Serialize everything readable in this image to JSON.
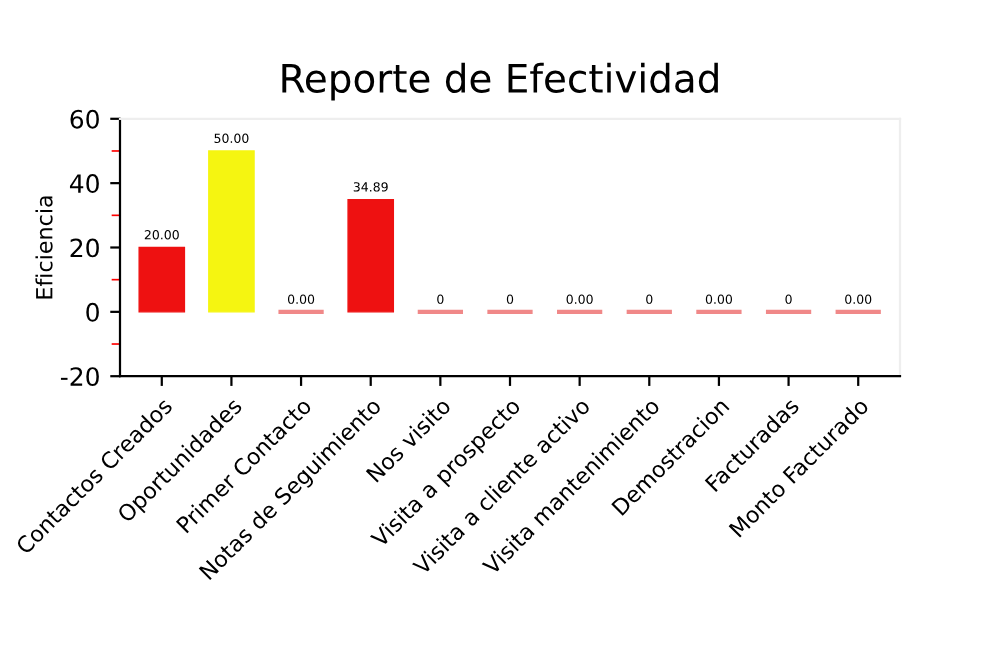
{
  "chart_data": {
    "type": "bar",
    "title": "Reporte de Efectividad",
    "ylabel": "Eficiencia",
    "categories": [
      "Contactos Creados",
      "Oportunidades",
      "Primer Contacto",
      "Notas de Seguimiento",
      "Nos visito",
      "Visita a prospecto",
      "Visita a cliente activo",
      "Visita mantenimiento",
      "Demostracion",
      "Facturadas",
      "Monto Facturado"
    ],
    "values": [
      20,
      50,
      0,
      34.89,
      0,
      0,
      0,
      0,
      0,
      0,
      0
    ],
    "value_labels": [
      "20.00",
      "50.00",
      "0.00",
      "34.89",
      "0",
      "0",
      "0.00",
      "0",
      "0.00",
      "0",
      "0.00"
    ],
    "colors": [
      "#ee1111",
      "#f5f511",
      "#f08888",
      "#ee1111",
      "#f08888",
      "#f08888",
      "#f08888",
      "#f08888",
      "#f08888",
      "#f08888",
      "#f08888"
    ],
    "ylim": [
      -20,
      60
    ],
    "yticks": [
      -20,
      0,
      20,
      40,
      60
    ],
    "grid": false,
    "legend": false
  }
}
